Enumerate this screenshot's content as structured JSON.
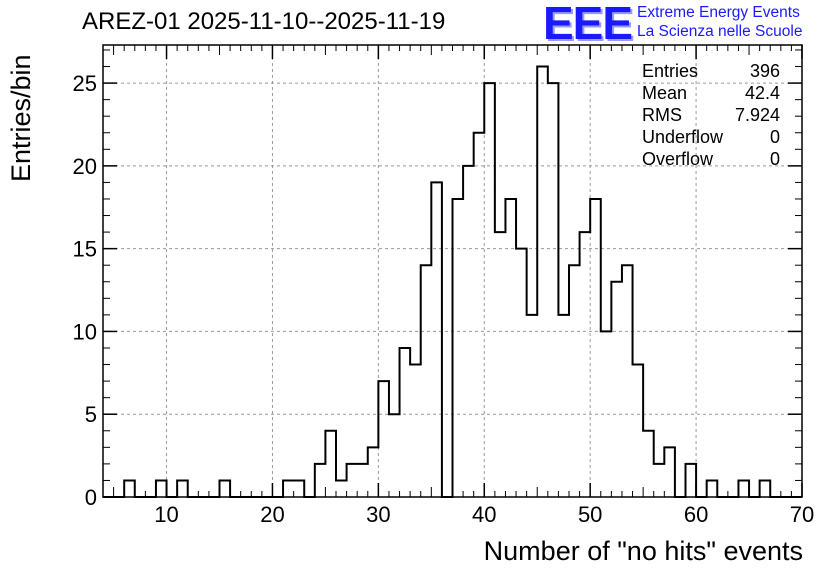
{
  "chart_data": {
    "type": "histogram",
    "title": "AREZ-01 2025-11-10--2025-11-19",
    "xlabel": "Number of \"no hits\" events",
    "ylabel": "Entries/bin",
    "xlim": [
      4,
      70
    ],
    "ylim": [
      0,
      27.3
    ],
    "grid": true,
    "bin_width": 1,
    "x_ticks": [
      10,
      20,
      30,
      40,
      50,
      60,
      70
    ],
    "x_tick_labels": [
      "10",
      "20",
      "30",
      "40",
      "50",
      "60",
      "70"
    ],
    "y_ticks": [
      0,
      5,
      10,
      15,
      20,
      25
    ],
    "y_tick_labels": [
      "0",
      "5",
      "10",
      "15",
      "20",
      "25"
    ],
    "bins": [
      {
        "x": 6,
        "count": 1
      },
      {
        "x": 9,
        "count": 1
      },
      {
        "x": 11,
        "count": 1
      },
      {
        "x": 15,
        "count": 1
      },
      {
        "x": 21,
        "count": 1
      },
      {
        "x": 22,
        "count": 1
      },
      {
        "x": 24,
        "count": 2
      },
      {
        "x": 25,
        "count": 4
      },
      {
        "x": 26,
        "count": 1
      },
      {
        "x": 27,
        "count": 2
      },
      {
        "x": 28,
        "count": 2
      },
      {
        "x": 29,
        "count": 3
      },
      {
        "x": 30,
        "count": 7
      },
      {
        "x": 31,
        "count": 5
      },
      {
        "x": 32,
        "count": 9
      },
      {
        "x": 33,
        "count": 8
      },
      {
        "x": 34,
        "count": 14
      },
      {
        "x": 35,
        "count": 19
      },
      {
        "x": 36,
        "count": 0
      },
      {
        "x": 37,
        "count": 18
      },
      {
        "x": 38,
        "count": 20
      },
      {
        "x": 39,
        "count": 22
      },
      {
        "x": 40,
        "count": 25
      },
      {
        "x": 41,
        "count": 16
      },
      {
        "x": 42,
        "count": 18
      },
      {
        "x": 43,
        "count": 15
      },
      {
        "x": 44,
        "count": 11
      },
      {
        "x": 45,
        "count": 26
      },
      {
        "x": 46,
        "count": 25
      },
      {
        "x": 47,
        "count": 11
      },
      {
        "x": 48,
        "count": 14
      },
      {
        "x": 49,
        "count": 16
      },
      {
        "x": 50,
        "count": 18
      },
      {
        "x": 51,
        "count": 10
      },
      {
        "x": 52,
        "count": 13
      },
      {
        "x": 53,
        "count": 14
      },
      {
        "x": 54,
        "count": 8
      },
      {
        "x": 55,
        "count": 4
      },
      {
        "x": 56,
        "count": 2
      },
      {
        "x": 57,
        "count": 3
      },
      {
        "x": 59,
        "count": 2
      },
      {
        "x": 61,
        "count": 1
      },
      {
        "x": 64,
        "count": 1
      },
      {
        "x": 66,
        "count": 1
      }
    ],
    "stats": {
      "entries_label": "Entries",
      "entries": "396",
      "mean_label": "Mean",
      "mean": "42.4",
      "rms_label": "RMS",
      "rms": "7.924",
      "underflow_label": "Underflow",
      "underflow": "0",
      "overflow_label": "Overflow",
      "overflow": "0"
    }
  },
  "logo": {
    "mark": "EEE",
    "line1": "Extreme Energy Events",
    "line2": "La Scienza nelle Scuole",
    "color": "#1a1aff"
  }
}
